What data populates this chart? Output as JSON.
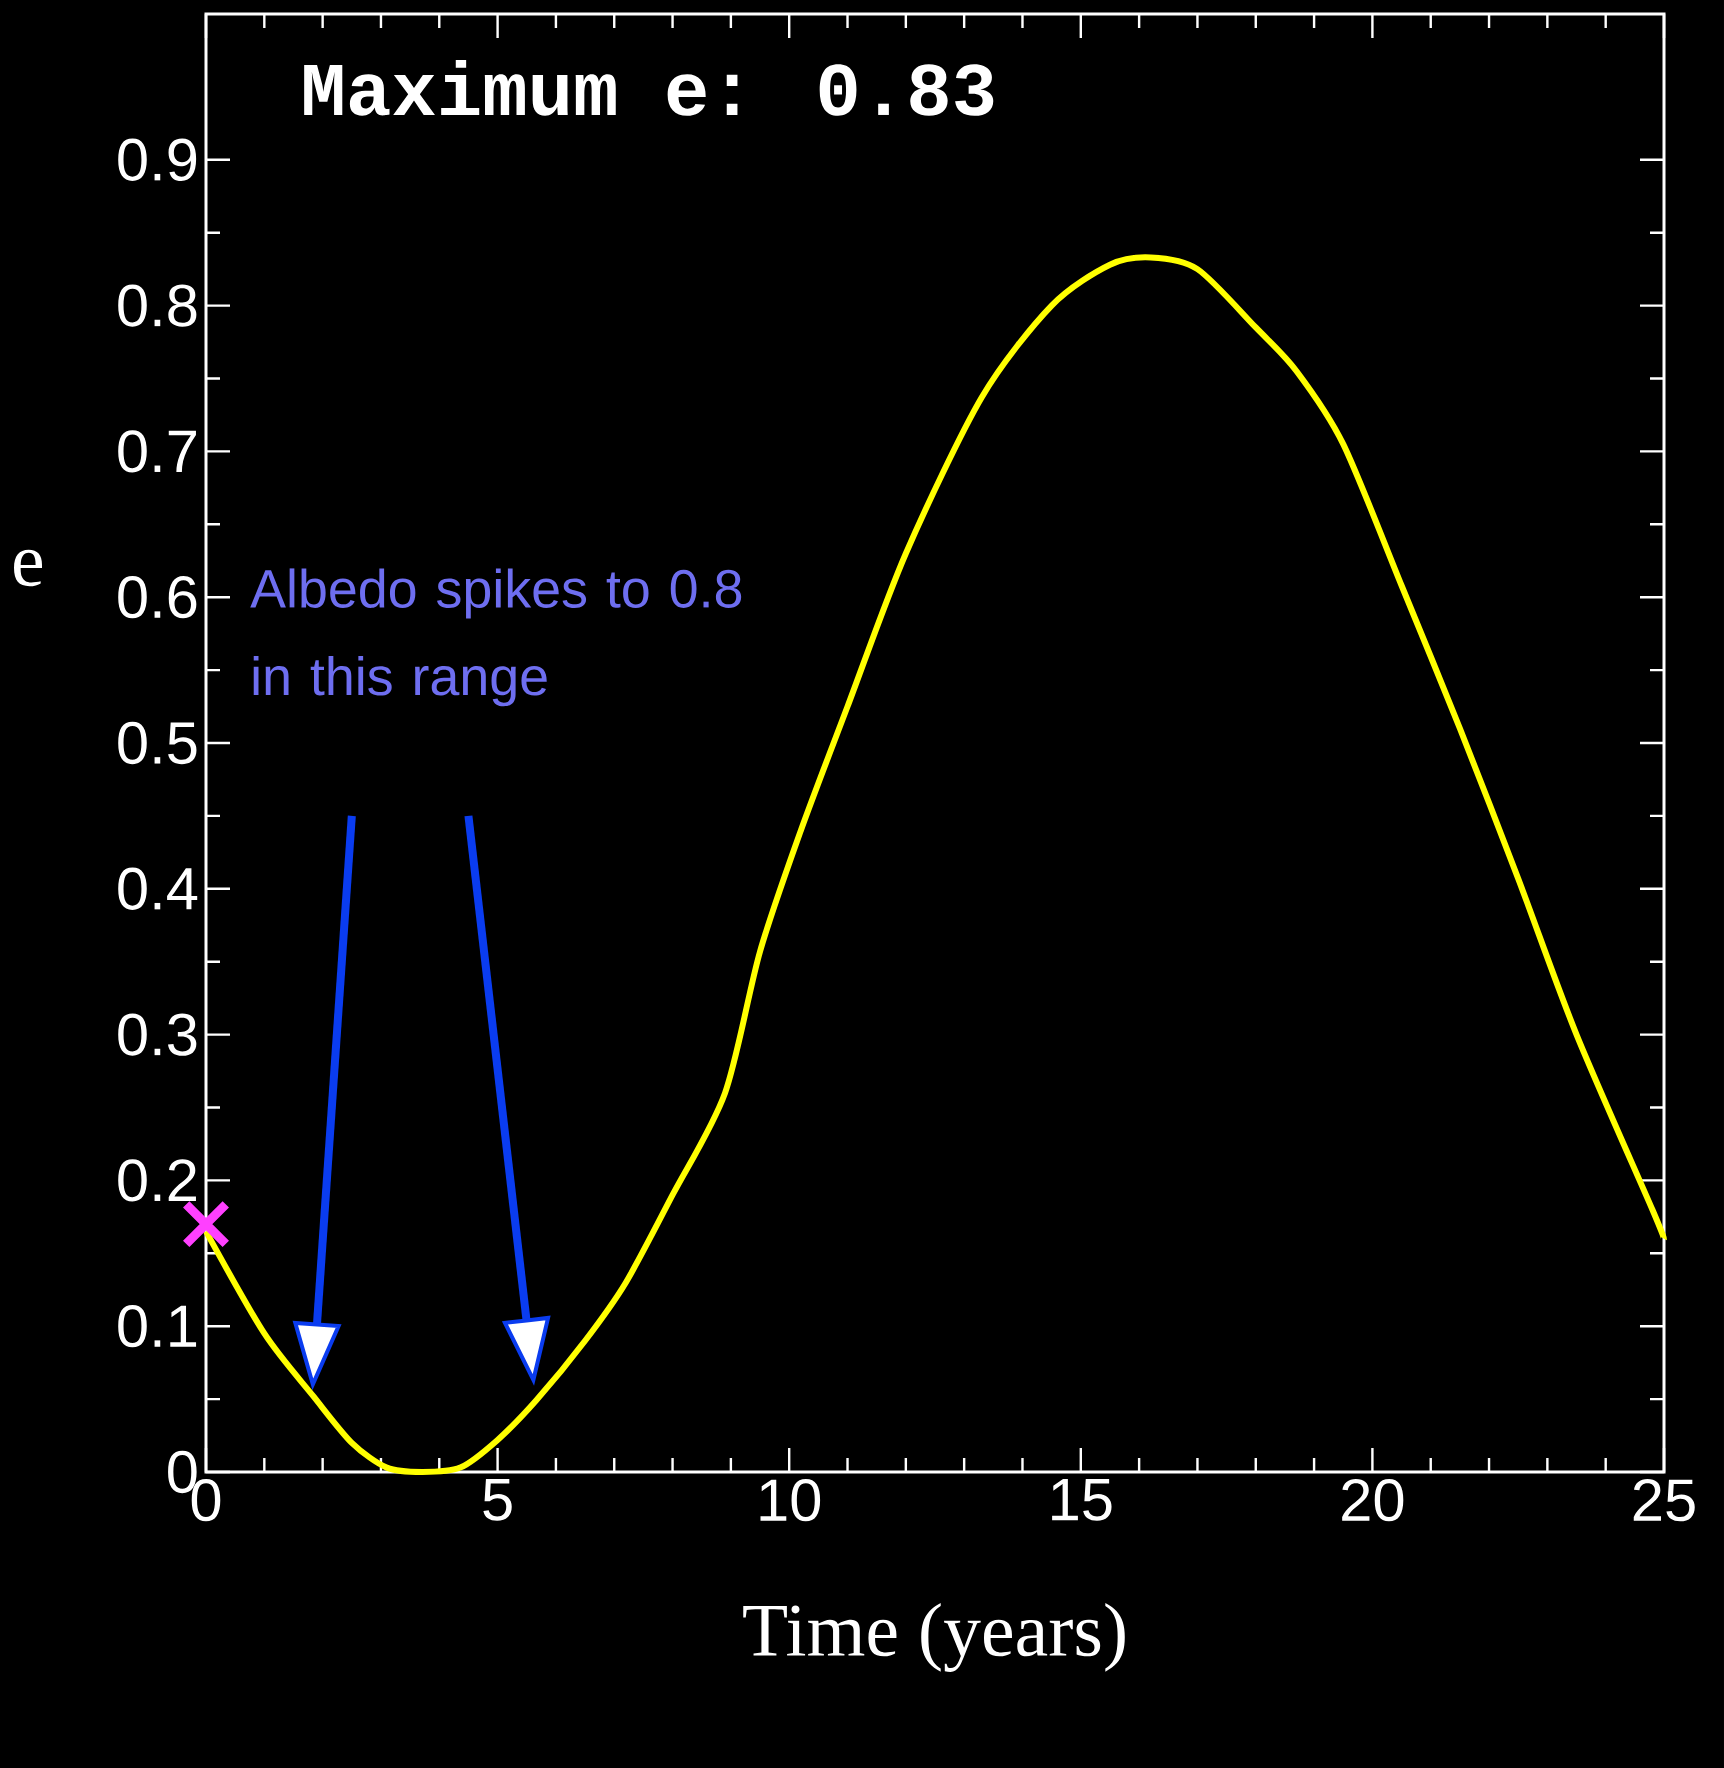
{
  "chart_data": {
    "type": "line",
    "title": "Maximum e: 0.83",
    "xlabel": "Time (years)",
    "ylabel": "e",
    "annotations": [
      "Albedo spikes to 0.8 in this range"
    ],
    "xlim": [
      0,
      25
    ],
    "ylim": [
      0,
      1
    ],
    "xticks": [
      0,
      5,
      10,
      15,
      20,
      25
    ],
    "yticks": [
      0,
      0.1,
      0.2,
      0.3,
      0.4,
      0.5,
      0.6,
      0.7,
      0.8,
      0.9
    ],
    "grid": false,
    "series": [
      {
        "color": "#ffff00",
        "marker": "none",
        "line_style": "solid",
        "x": [
          0,
          1,
          1.84,
          2.5,
          3.1,
          3.7,
          4.36,
          5,
          5.66,
          6.5,
          7.2,
          8,
          8.9,
          9.5,
          10.2,
          11,
          12,
          13.3,
          14.5,
          15.5,
          16.2,
          17,
          18,
          18.7,
          19.5,
          20.5,
          21.5,
          22.5,
          23.5,
          24.8,
          25
        ],
        "values": [
          0.165,
          0.095,
          0.052,
          0.02,
          0.003,
          0,
          0.003,
          0.022,
          0.049,
          0.09,
          0.13,
          0.19,
          0.26,
          0.357,
          0.44,
          0.525,
          0.63,
          0.737,
          0.8,
          0.828,
          0.833,
          0.825,
          0.785,
          0.755,
          0.705,
          0.608,
          0.51,
          0.407,
          0.3,
          0.18,
          0.16
        ]
      },
      {
        "type": "scatter",
        "color": "#ff40ff",
        "marker": "cross",
        "x": [
          0
        ],
        "values": [
          0.17
        ]
      }
    ]
  }
}
